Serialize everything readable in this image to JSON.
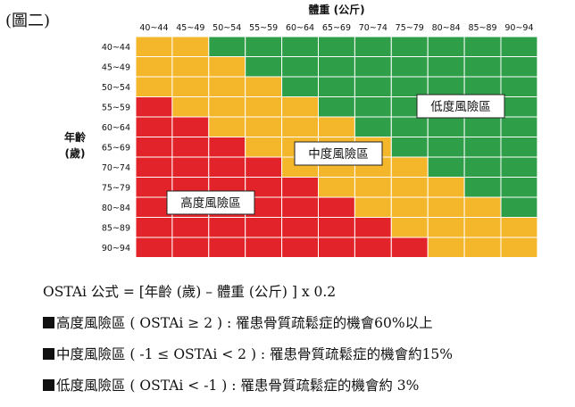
{
  "figure_label": "(圖二)",
  "chart_data": {
    "type": "heatmap",
    "x_title": "體重 (公斤)",
    "y_title": [
      "年齡",
      "(歲)"
    ],
    "x_categories": [
      "40~44",
      "45~49",
      "50~54",
      "55~59",
      "60~64",
      "65~69",
      "70~74",
      "75~79",
      "80~84",
      "85~89",
      "90~94"
    ],
    "y_categories": [
      "40~44",
      "45~49",
      "50~54",
      "55~59",
      "60~64",
      "65~69",
      "70~74",
      "75~79",
      "80~84",
      "85~89",
      "90~94"
    ],
    "risk_cells": [
      [
        "mid",
        "mid",
        "low",
        "low",
        "low",
        "low",
        "low",
        "low",
        "low",
        "low",
        "low"
      ],
      [
        "mid",
        "mid",
        "mid",
        "low",
        "low",
        "low",
        "low",
        "low",
        "low",
        "low",
        "low"
      ],
      [
        "mid",
        "mid",
        "mid",
        "mid",
        "low",
        "low",
        "low",
        "low",
        "low",
        "low",
        "low"
      ],
      [
        "high",
        "mid",
        "mid",
        "mid",
        "mid",
        "low",
        "low",
        "low",
        "low",
        "low",
        "low"
      ],
      [
        "high",
        "high",
        "mid",
        "mid",
        "mid",
        "mid",
        "low",
        "low",
        "low",
        "low",
        "low"
      ],
      [
        "high",
        "high",
        "high",
        "mid",
        "mid",
        "mid",
        "mid",
        "low",
        "low",
        "low",
        "low"
      ],
      [
        "high",
        "high",
        "high",
        "high",
        "mid",
        "mid",
        "mid",
        "mid",
        "low",
        "low",
        "low"
      ],
      [
        "high",
        "high",
        "high",
        "high",
        "high",
        "mid",
        "mid",
        "mid",
        "mid",
        "low",
        "low"
      ],
      [
        "high",
        "high",
        "high",
        "high",
        "high",
        "high",
        "mid",
        "mid",
        "mid",
        "mid",
        "low"
      ],
      [
        "high",
        "high",
        "high",
        "high",
        "high",
        "high",
        "high",
        "mid",
        "mid",
        "mid",
        "mid"
      ],
      [
        "high",
        "high",
        "high",
        "high",
        "high",
        "high",
        "high",
        "high",
        "mid",
        "mid",
        "mid"
      ]
    ],
    "colors": {
      "high": "#e2232a",
      "mid": "#f4b62a",
      "low": "#2e9e48",
      "grid": "#ffffff"
    },
    "region_labels": {
      "high": "高度風險區",
      "mid": "中度風險區",
      "low": "低度風險區"
    }
  },
  "formula": "OSTAi  公式  = [年齡 (歲) –  體重 (公斤) ] x 0.2",
  "legend": [
    {
      "key": "high",
      "text": "高度風險區 ( OSTAi ≥ 2 ) : 罹患骨質疏鬆症的機會60%以上"
    },
    {
      "key": "mid",
      "text": "中度風險區 ( -1 ≤ OSTAi < 2 ) : 罹患骨質疏鬆症的機會約15%"
    },
    {
      "key": "low",
      "text": "低度風險區 ( OSTAi < -1 ) : 罹患骨質疏鬆症的機會約 3%"
    }
  ]
}
